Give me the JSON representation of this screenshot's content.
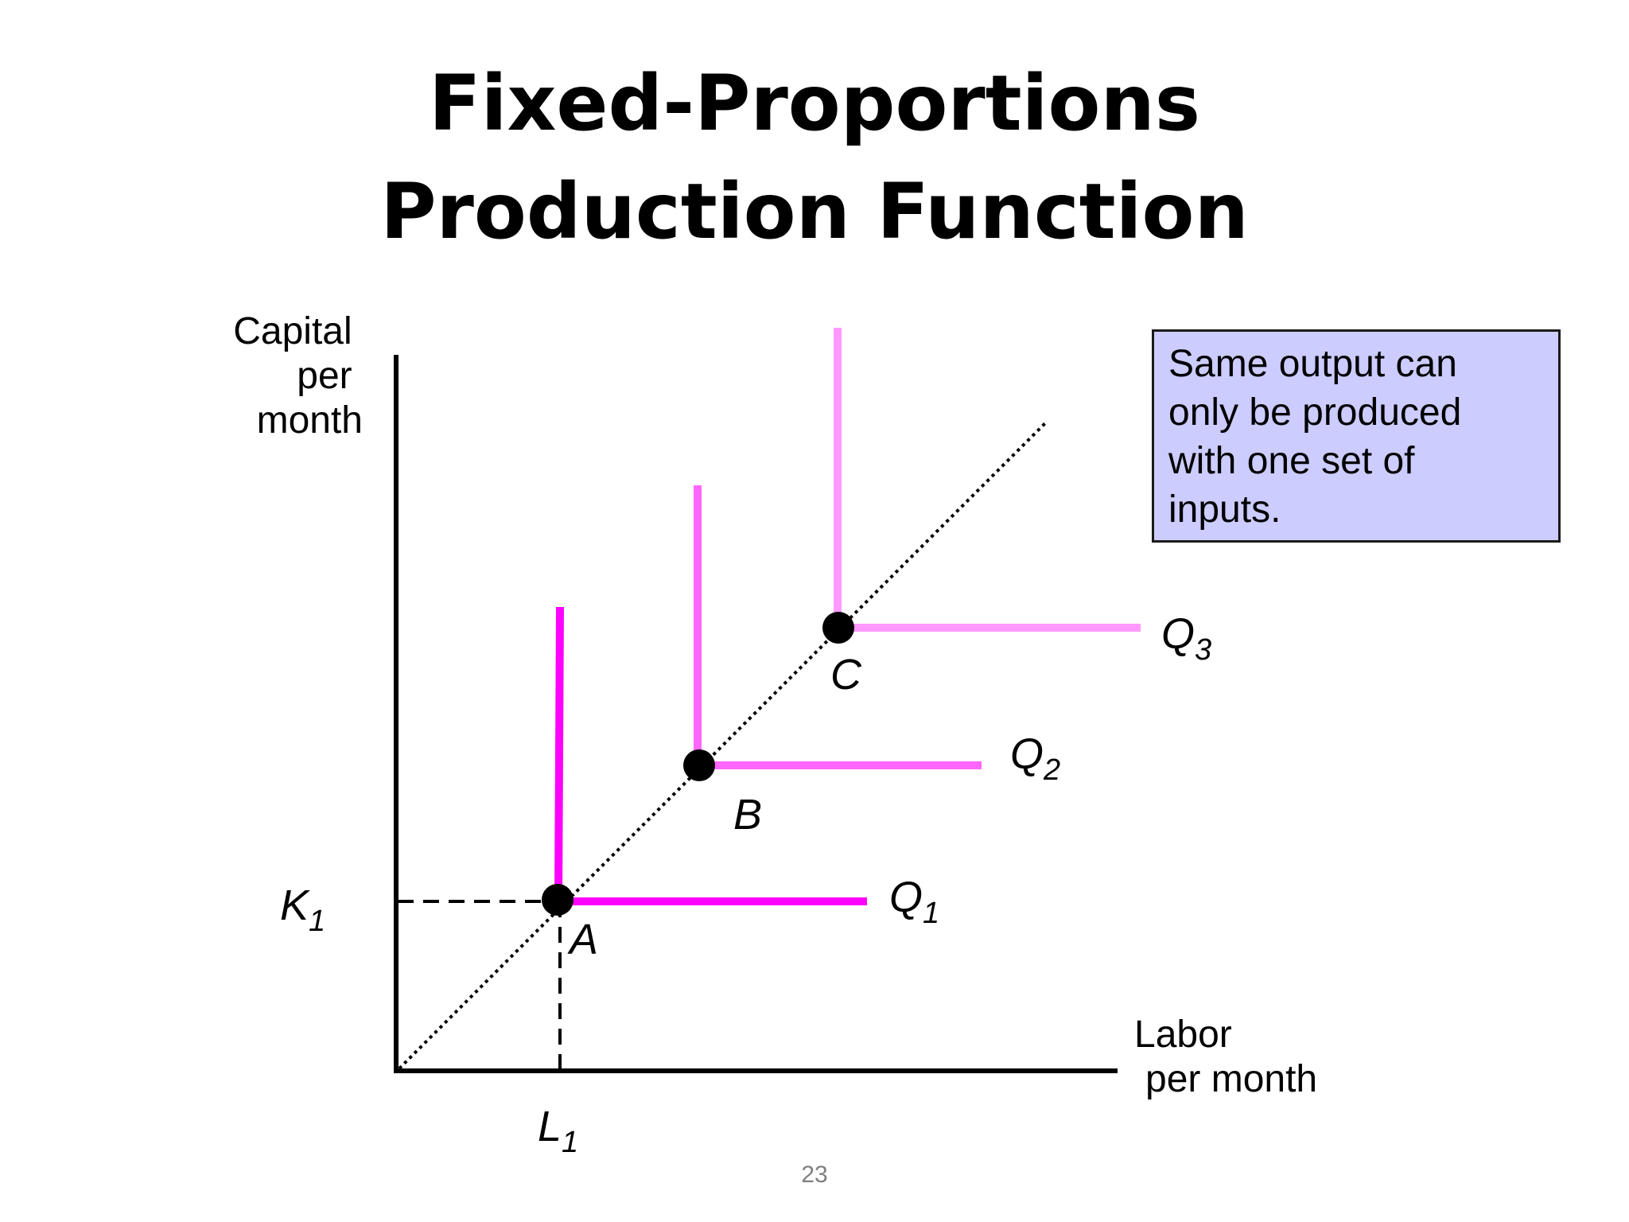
{
  "title": {
    "line1": "Fixed-Proportions",
    "line2": "Production Function"
  },
  "axes": {
    "y_label_lines": [
      "Capital",
      "per",
      "month"
    ],
    "x_label_lines": [
      "Labor",
      "per month"
    ]
  },
  "ticks": {
    "k1": {
      "main": "K",
      "sub": "1"
    },
    "l1": {
      "main": "L",
      "sub": "1"
    }
  },
  "isoquants": [
    {
      "name": "Q",
      "sub": "1",
      "point": "A",
      "color": "#ff00ff"
    },
    {
      "name": "Q",
      "sub": "2",
      "point": "B",
      "color": "#ff66ff"
    },
    {
      "name": "Q",
      "sub": "3",
      "point": "C",
      "color": "#ff99ff"
    }
  ],
  "note": {
    "lines": [
      "Same output can",
      "only be produced",
      "with one set of",
      "inputs."
    ],
    "background": "#ccccff"
  },
  "page_number": "23"
}
